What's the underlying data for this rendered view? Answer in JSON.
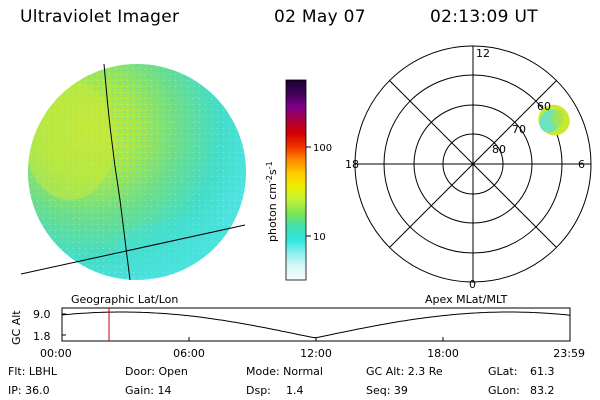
{
  "header": {
    "instrument": "Ultraviolet Imager",
    "date": "02 May 07",
    "time": "02:13:09 UT"
  },
  "colorbar": {
    "unit_label": "photon cm",
    "unit_sup1": "-2",
    "unit_s": "s",
    "unit_sup2": "-1",
    "tick_100": "100",
    "tick_10": "10",
    "colors": [
      "#1a0033",
      "#400055",
      "#7a0088",
      "#aa0040",
      "#d40000",
      "#ee3300",
      "#ff8800",
      "#ffcc00",
      "#eef000",
      "#bff23a",
      "#7fe455",
      "#3fe0b0",
      "#30e8dd",
      "#8ff0ee",
      "#d8f8f8",
      "#f4fdfd"
    ]
  },
  "polar_plot": {
    "label_12": "12",
    "label_18": "18",
    "label_6": "6",
    "label_0": "0",
    "label_60": "60",
    "label_70": "70",
    "label_80": "80"
  },
  "map_labels": {
    "geographic": "Geographic Lat/Lon",
    "apex": "Apex MLat/MLT"
  },
  "altitude_strip": {
    "axis_label": "GC Alt",
    "ymax": "9.0",
    "ymin": "1.8",
    "xticks": [
      "00:00",
      "06:00",
      "12:00",
      "18:00",
      "23:59"
    ],
    "current_time_marker_hour": 2.22
  },
  "footer": {
    "flt": "Flt: LBHL",
    "ip": "IP: 36.0",
    "door": "Door: Open",
    "gain": "Gain: 14",
    "mode": "Mode: Normal",
    "dsp_label": "Dsp:",
    "dsp_value": "1.4",
    "gc_alt": "GC Alt: 2.3 Re",
    "seq": "Seq: 39",
    "glat_label": "GLat:",
    "glat_value": "61.3",
    "glon_label": "GLon:",
    "glon_value": "83.2"
  }
}
